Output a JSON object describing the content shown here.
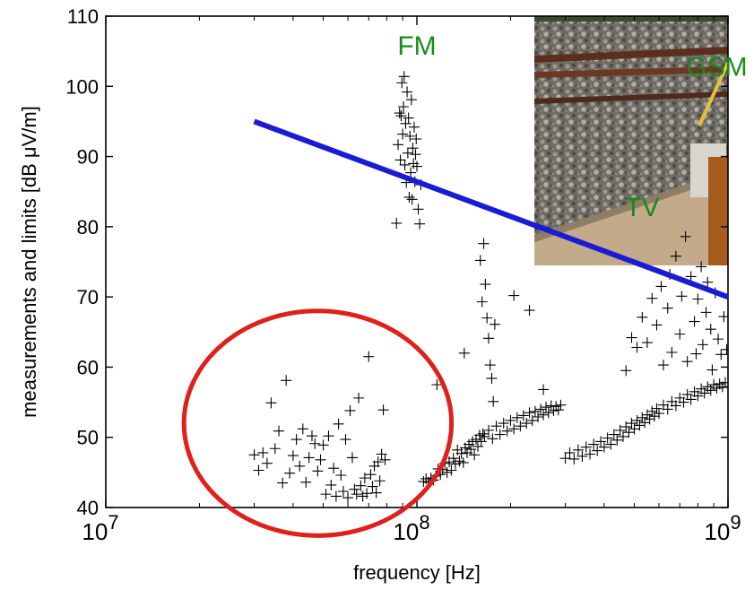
{
  "chart_data": {
    "type": "scatter",
    "xlabel": "frequency [Hz]",
    "ylabel": "measurements and limits [dB μV/m]",
    "x_scale": "log",
    "xlim": [
      10000000,
      1000000000
    ],
    "ylim": [
      40,
      110
    ],
    "grid": false,
    "x_ticks": [
      {
        "value": 10000000,
        "base": "10",
        "exp": "7"
      },
      {
        "value": 100000000,
        "base": "10",
        "exp": "8"
      },
      {
        "value": 1000000000,
        "base": "10",
        "exp": "9"
      }
    ],
    "y_ticks": [
      40,
      50,
      60,
      70,
      80,
      90,
      100,
      110
    ],
    "annotations": [
      {
        "text": "FM",
        "x": 100000000,
        "y": 104.5,
        "color": "#1a8a1a"
      },
      {
        "text": "GSM",
        "x": 920000000,
        "y": 101.5,
        "color": "#1a8a1a"
      },
      {
        "text": "TV",
        "x": 530000000,
        "y": 81.5,
        "color": "#1a8a1a"
      }
    ],
    "limit_line": {
      "color": "#1b1bd6",
      "x": [
        30000000,
        1000000000
      ],
      "y": [
        95,
        70
      ]
    },
    "circle": {
      "color": "#e0201a",
      "center": [
        48000000,
        52
      ],
      "radius_decades": 0.43,
      "radius_y": 16
    },
    "inset_photo": {
      "description_hidden": true,
      "x_range": [
        290000000,
        1000000000
      ],
      "y_range": [
        76,
        110
      ]
    },
    "series": [
      {
        "marker": "+",
        "color": "#000000",
        "points": [
          [
            30000000,
            47.5
          ],
          [
            31000000,
            45.3
          ],
          [
            32000000,
            47.8
          ],
          [
            33000000,
            46.3
          ],
          [
            34000000,
            54.9
          ],
          [
            35000000,
            48.4
          ],
          [
            36000000,
            50.9
          ],
          [
            37000000,
            43.5
          ],
          [
            38000000,
            58.1
          ],
          [
            39000000,
            44.9
          ],
          [
            40000000,
            47.4
          ],
          [
            41000000,
            49.7
          ],
          [
            42000000,
            45.9
          ],
          [
            43000000,
            51.2
          ],
          [
            44000000,
            43.6
          ],
          [
            45000000,
            47.1
          ],
          [
            46000000,
            50.2
          ],
          [
            47000000,
            49.1
          ],
          [
            48000000,
            45.2
          ],
          [
            49000000,
            46.8
          ],
          [
            50000000,
            48.9
          ],
          [
            51000000,
            41.9
          ],
          [
            52000000,
            50.2
          ],
          [
            53000000,
            43.2
          ],
          [
            54000000,
            45.6
          ],
          [
            55000000,
            41.6
          ],
          [
            56000000,
            51.9
          ],
          [
            57000000,
            44.6
          ],
          [
            58000000,
            42.3
          ],
          [
            59000000,
            49.7
          ],
          [
            60000000,
            41.4
          ],
          [
            61000000,
            53.8
          ],
          [
            62000000,
            47.1
          ],
          [
            63000000,
            42.6
          ],
          [
            64000000,
            41.9
          ],
          [
            65000000,
            55.6
          ],
          [
            66000000,
            43.1
          ],
          [
            67000000,
            41.6
          ],
          [
            68000000,
            44.2
          ],
          [
            69000000,
            42.0
          ],
          [
            70000000,
            61.5
          ],
          [
            71000000,
            44.7
          ],
          [
            72000000,
            43.0
          ],
          [
            73000000,
            45.9
          ],
          [
            74000000,
            42.1
          ],
          [
            75000000,
            46.5
          ],
          [
            76000000,
            43.8
          ],
          [
            77000000,
            47.6
          ],
          [
            78000000,
            53.9
          ],
          [
            79000000,
            46.8
          ],
          [
            86000000,
            80.5
          ],
          [
            87000000,
            91.7
          ],
          [
            88000000,
            96.2
          ],
          [
            88500000,
            89.5
          ],
          [
            89000000,
            95.8
          ],
          [
            89500000,
            100.5
          ],
          [
            90000000,
            93.2
          ],
          [
            90500000,
            97.1
          ],
          [
            91000000,
            101.4
          ],
          [
            91500000,
            88.8
          ],
          [
            92000000,
            94.7
          ],
          [
            92500000,
            86.3
          ],
          [
            93000000,
            99.2
          ],
          [
            93500000,
            90.5
          ],
          [
            94000000,
            95.5
          ],
          [
            94500000,
            84.2
          ],
          [
            95000000,
            92.9
          ],
          [
            95500000,
            87.7
          ],
          [
            96000000,
            98.1
          ],
          [
            96500000,
            83.9
          ],
          [
            97000000,
            91.2
          ],
          [
            97500000,
            89.0
          ],
          [
            98000000,
            94.2
          ],
          [
            98500000,
            86.4
          ],
          [
            99000000,
            90.3
          ],
          [
            99500000,
            92.5
          ],
          [
            100000000,
            88.6
          ],
          [
            101000000,
            82.5
          ],
          [
            102000000,
            80.4
          ],
          [
            103000000,
            86.0
          ],
          [
            105000000,
            43.7
          ],
          [
            107000000,
            44.1
          ],
          [
            109000000,
            43.6
          ],
          [
            111000000,
            44.2
          ],
          [
            113000000,
            43.9
          ],
          [
            115000000,
            44.5
          ],
          [
            117000000,
            45.5
          ],
          [
            119000000,
            44.7
          ],
          [
            121000000,
            45.4
          ],
          [
            123000000,
            46.3
          ],
          [
            125000000,
            45.0
          ],
          [
            127000000,
            46.5
          ],
          [
            129000000,
            45.3
          ],
          [
            131000000,
            47.0
          ],
          [
            133000000,
            46.2
          ],
          [
            135000000,
            48.2
          ],
          [
            137000000,
            46.6
          ],
          [
            139000000,
            47.7
          ],
          [
            141000000,
            46.4
          ],
          [
            143000000,
            48.5
          ],
          [
            145000000,
            47.8
          ],
          [
            147000000,
            49.0
          ],
          [
            149000000,
            48.3
          ],
          [
            151000000,
            49.4
          ],
          [
            153000000,
            47.5
          ],
          [
            155000000,
            49.7
          ],
          [
            157000000,
            48.7
          ],
          [
            159000000,
            50.3
          ],
          [
            161000000,
            49.4
          ],
          [
            163000000,
            50.5
          ],
          [
            116000000,
            57.5
          ],
          [
            142000000,
            62.0
          ],
          [
            160000000,
            75.2
          ],
          [
            162000000,
            69.3
          ],
          [
            164000000,
            77.6
          ],
          [
            166000000,
            71.8
          ],
          [
            168000000,
            67.0
          ],
          [
            170000000,
            64.1
          ],
          [
            172000000,
            60.3
          ],
          [
            174000000,
            58.4
          ],
          [
            176000000,
            55.1
          ],
          [
            178000000,
            66.1
          ],
          [
            205000000,
            70.2
          ],
          [
            230000000,
            68.1
          ],
          [
            255000000,
            56.8
          ],
          [
            165000000,
            50.1
          ],
          [
            170000000,
            51.0
          ],
          [
            175000000,
            49.8
          ],
          [
            180000000,
            51.6
          ],
          [
            185000000,
            50.4
          ],
          [
            190000000,
            52.0
          ],
          [
            195000000,
            50.9
          ],
          [
            200000000,
            52.4
          ],
          [
            205000000,
            51.2
          ],
          [
            210000000,
            52.8
          ],
          [
            215000000,
            51.6
          ],
          [
            220000000,
            53.1
          ],
          [
            225000000,
            52.0
          ],
          [
            230000000,
            53.5
          ],
          [
            235000000,
            52.4
          ],
          [
            240000000,
            53.7
          ],
          [
            245000000,
            52.9
          ],
          [
            250000000,
            54.0
          ],
          [
            255000000,
            53.2
          ],
          [
            260000000,
            54.3
          ],
          [
            265000000,
            53.5
          ],
          [
            270000000,
            54.5
          ],
          [
            275000000,
            53.8
          ],
          [
            280000000,
            54.4
          ],
          [
            285000000,
            53.9
          ],
          [
            290000000,
            54.6
          ],
          [
            300000000,
            47.0
          ],
          [
            310000000,
            47.8
          ],
          [
            320000000,
            46.9
          ],
          [
            330000000,
            48.2
          ],
          [
            340000000,
            47.3
          ],
          [
            350000000,
            48.6
          ],
          [
            360000000,
            47.6
          ],
          [
            370000000,
            49.0
          ],
          [
            380000000,
            48.1
          ],
          [
            390000000,
            49.4
          ],
          [
            400000000,
            48.6
          ],
          [
            410000000,
            49.9
          ],
          [
            420000000,
            49.0
          ],
          [
            430000000,
            50.4
          ],
          [
            440000000,
            49.6
          ],
          [
            450000000,
            51.0
          ],
          [
            460000000,
            50.1
          ],
          [
            470000000,
            51.5
          ],
          [
            480000000,
            50.7
          ],
          [
            490000000,
            52.0
          ],
          [
            500000000,
            51.2
          ],
          [
            510000000,
            52.4
          ],
          [
            520000000,
            51.7
          ],
          [
            530000000,
            52.8
          ],
          [
            540000000,
            52.1
          ],
          [
            550000000,
            53.2
          ],
          [
            560000000,
            52.6
          ],
          [
            570000000,
            53.7
          ],
          [
            580000000,
            53.0
          ],
          [
            590000000,
            54.1
          ],
          [
            600000000,
            53.4
          ],
          [
            620000000,
            54.6
          ],
          [
            640000000,
            54.0
          ],
          [
            660000000,
            55.1
          ],
          [
            680000000,
            54.5
          ],
          [
            700000000,
            55.6
          ],
          [
            720000000,
            55.0
          ],
          [
            740000000,
            56.1
          ],
          [
            760000000,
            55.4
          ],
          [
            780000000,
            56.5
          ],
          [
            800000000,
            55.9
          ],
          [
            820000000,
            56.9
          ],
          [
            840000000,
            56.3
          ],
          [
            860000000,
            57.2
          ],
          [
            880000000,
            56.7
          ],
          [
            900000000,
            57.5
          ],
          [
            920000000,
            57.0
          ],
          [
            940000000,
            57.6
          ],
          [
            960000000,
            57.2
          ],
          [
            980000000,
            57.8
          ],
          [
            1000000000,
            57.1
          ],
          [
            470000000,
            59.5
          ],
          [
            490000000,
            64.2
          ],
          [
            510000000,
            62.8
          ],
          [
            530000000,
            67.1
          ],
          [
            550000000,
            63.5
          ],
          [
            570000000,
            69.8
          ],
          [
            590000000,
            66.0
          ],
          [
            610000000,
            71.5
          ],
          [
            620000000,
            60.3
          ],
          [
            640000000,
            68.4
          ],
          [
            650000000,
            73.2
          ],
          [
            660000000,
            62.1
          ],
          [
            680000000,
            75.8
          ],
          [
            700000000,
            64.7
          ],
          [
            710000000,
            70.1
          ],
          [
            730000000,
            78.6
          ],
          [
            740000000,
            60.8
          ],
          [
            760000000,
            72.9
          ],
          [
            780000000,
            66.5
          ],
          [
            790000000,
            61.9
          ],
          [
            800000000,
            69.7
          ],
          [
            820000000,
            74.3
          ],
          [
            830000000,
            63.2
          ],
          [
            850000000,
            67.8
          ],
          [
            860000000,
            72.1
          ],
          [
            880000000,
            65.4
          ],
          [
            890000000,
            59.6
          ],
          [
            910000000,
            70.6
          ],
          [
            930000000,
            64.0
          ],
          [
            950000000,
            61.8
          ],
          [
            970000000,
            67.2
          ],
          [
            990000000,
            62.5
          ]
        ]
      }
    ]
  }
}
